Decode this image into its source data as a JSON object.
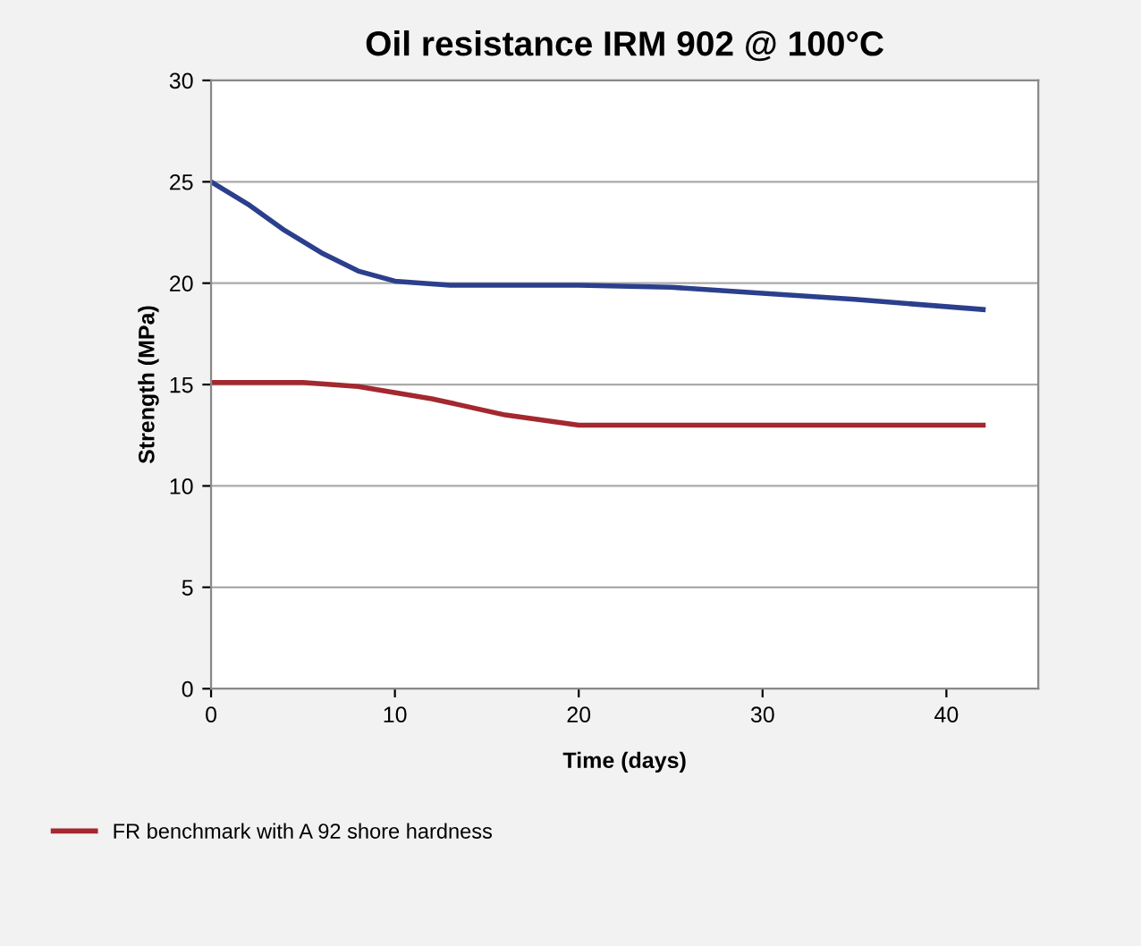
{
  "chart_data": {
    "type": "line",
    "title": "Oil resistance IRM 902 @ 100°C",
    "xlabel": "Time (days)",
    "ylabel": "Strength (MPa)",
    "xlim": [
      0,
      45
    ],
    "xticks": [
      0,
      10,
      20,
      30,
      40
    ],
    "ylim": [
      0,
      30
    ],
    "yticks": [
      0,
      5,
      10,
      15,
      20,
      25,
      30
    ],
    "grid": "y",
    "legend": "bottom",
    "marker": "none",
    "line_style": "solid",
    "series": [
      {
        "name": "FR benchmark with A 92 shore hardness",
        "color": "#a3282f",
        "x": [
          0,
          5,
          8,
          12,
          16,
          20,
          25,
          30,
          35,
          42
        ],
        "values": [
          15.1,
          15.1,
          14.9,
          14.3,
          13.5,
          13.0,
          13.0,
          13.0,
          13.0,
          13.0
        ]
      },
      {
        "color": "#2b3f8c",
        "x": [
          0,
          2,
          4,
          6,
          8,
          10,
          13,
          20,
          25,
          30,
          35,
          42
        ],
        "values": [
          25,
          23.9,
          22.6,
          21.5,
          20.6,
          20.1,
          19.9,
          19.9,
          19.8,
          19.5,
          19.2,
          18.7
        ]
      }
    ]
  }
}
